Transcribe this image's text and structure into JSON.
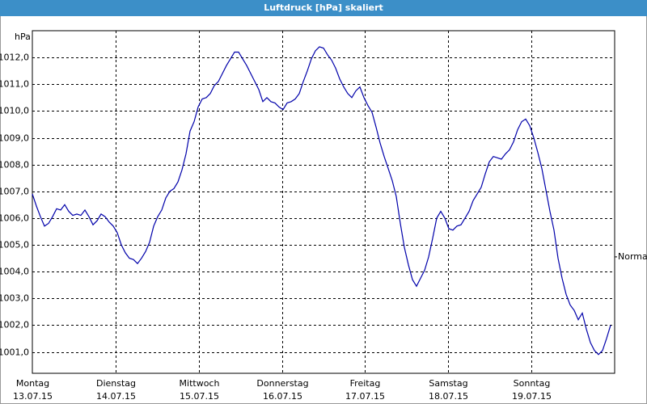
{
  "chart_data": {
    "type": "line",
    "title": "Luftdruck [hPa] skaliert",
    "y_unit": "hPa",
    "color": "#0000aa",
    "grid": true,
    "ylim": [
      1000.2,
      1013.0
    ],
    "yticks": [
      {
        "value": 1001,
        "label": "1001,0"
      },
      {
        "value": 1002,
        "label": "1002,0"
      },
      {
        "value": 1003,
        "label": "1003,0"
      },
      {
        "value": 1004,
        "label": "1004,0"
      },
      {
        "value": 1005,
        "label": "1005,0"
      },
      {
        "value": 1006,
        "label": "1006,0"
      },
      {
        "value": 1007,
        "label": "1007,0"
      },
      {
        "value": 1008,
        "label": "1008,0"
      },
      {
        "value": 1009,
        "label": "1009,0"
      },
      {
        "value": 1010,
        "label": "1010,0"
      },
      {
        "value": 1011,
        "label": "1011,0"
      },
      {
        "value": 1012,
        "label": "1012,0"
      }
    ],
    "normal": {
      "value": 1004.55,
      "label": "Normal"
    },
    "xticks": [
      {
        "day": "Montag",
        "date": "13.07.15"
      },
      {
        "day": "Dienstag",
        "date": "14.07.15"
      },
      {
        "day": "Mittwoch",
        "date": "15.07.15"
      },
      {
        "day": "Donnerstag",
        "date": "16.07.15"
      },
      {
        "day": "Freitag",
        "date": "17.07.15"
      },
      {
        "day": "Samstag",
        "date": "18.07.15"
      },
      {
        "day": "Sonntag",
        "date": "19.07.15"
      }
    ],
    "values": [
      1006.9,
      1006.45,
      1006.05,
      1005.7,
      1005.8,
      1006.05,
      1006.35,
      1006.3,
      1006.5,
      1006.25,
      1006.1,
      1006.15,
      1006.1,
      1006.3,
      1006.05,
      1005.75,
      1005.9,
      1006.15,
      1006.05,
      1005.85,
      1005.7,
      1005.45,
      1005.0,
      1004.7,
      1004.5,
      1004.45,
      1004.3,
      1004.5,
      1004.75,
      1005.1,
      1005.7,
      1006.05,
      1006.3,
      1006.75,
      1007.0,
      1007.1,
      1007.35,
      1007.8,
      1008.4,
      1009.25,
      1009.6,
      1010.15,
      1010.45,
      1010.5,
      1010.65,
      1010.95,
      1011.1,
      1011.4,
      1011.7,
      1011.95,
      1012.2,
      1012.2,
      1011.95,
      1011.7,
      1011.4,
      1011.1,
      1010.8,
      1010.35,
      1010.5,
      1010.35,
      1010.3,
      1010.15,
      1010.05,
      1010.3,
      1010.35,
      1010.45,
      1010.65,
      1011.1,
      1011.5,
      1011.95,
      1012.25,
      1012.4,
      1012.35,
      1012.1,
      1011.9,
      1011.6,
      1011.2,
      1010.9,
      1010.65,
      1010.5,
      1010.75,
      1010.9,
      1010.5,
      1010.2,
      1009.95,
      1009.4,
      1008.8,
      1008.3,
      1007.85,
      1007.4,
      1006.8,
      1005.8,
      1004.9,
      1004.25,
      1003.7,
      1003.45,
      1003.75,
      1004.05,
      1004.55,
      1005.25,
      1006.0,
      1006.25,
      1006.0,
      1005.6,
      1005.55,
      1005.7,
      1005.75,
      1006.0,
      1006.25,
      1006.65,
      1006.9,
      1007.15,
      1007.65,
      1008.1,
      1008.3,
      1008.25,
      1008.2,
      1008.4,
      1008.55,
      1008.85,
      1009.3,
      1009.6,
      1009.7,
      1009.45,
      1009.0,
      1008.45,
      1007.85,
      1007.05,
      1006.25,
      1005.55,
      1004.5,
      1003.75,
      1003.15,
      1002.75,
      1002.55,
      1002.2,
      1002.45,
      1001.85,
      1001.35,
      1001.05,
      1000.9,
      1001.05,
      1001.5,
      1002.0
    ]
  }
}
